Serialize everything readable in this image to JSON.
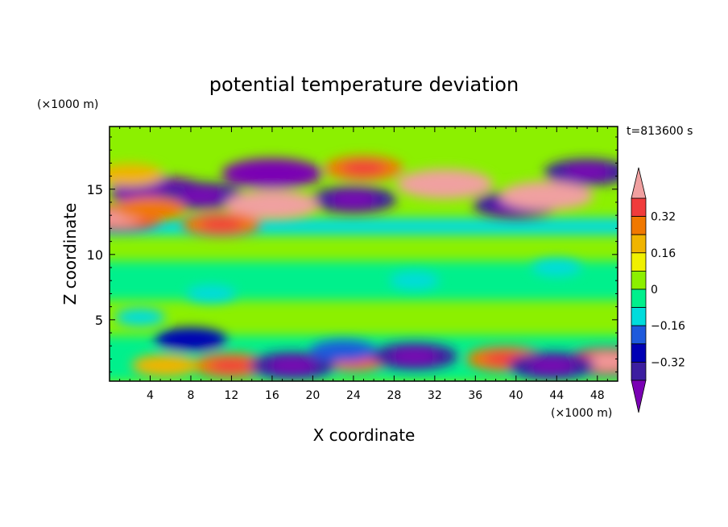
{
  "chart_data": {
    "type": "heatmap",
    "title": "potential temperature deviation",
    "xlabel": "X coordinate",
    "ylabel": "Z coordinate",
    "x_unit": "(×1000 m)",
    "y_unit": "(×1000 m)",
    "time_label": "t=813600 s",
    "xlim": [
      0,
      50
    ],
    "ylim": [
      0.3,
      19.8
    ],
    "x_ticks": [
      "4",
      "8",
      "12",
      "16",
      "20",
      "24",
      "28",
      "32",
      "36",
      "40",
      "44",
      "48"
    ],
    "y_ticks": [
      "5",
      "10",
      "15"
    ],
    "colorbar": {
      "levels": [
        -0.48,
        -0.4,
        -0.32,
        -0.24,
        -0.16,
        -0.08,
        0,
        0.08,
        0.16,
        0.24,
        0.32,
        0.4
      ],
      "colors": [
        "#7a00b4",
        "#3c1ea0",
        "#0000b4",
        "#1e5adc",
        "#00dcdc",
        "#00f08c",
        "#8cf000",
        "#f0f000",
        "#f0b400",
        "#f07800",
        "#f03c3c",
        "#f0a0a0"
      ],
      "tick_labels": [
        "0.32",
        "0.16",
        "0",
        "−0.16",
        "−0.32"
      ]
    },
    "features": [
      {
        "x": 5,
        "z": 14.8,
        "value": -0.45
      },
      {
        "x": 16,
        "z": 16.2,
        "value": -0.45
      },
      {
        "x": 9,
        "z": 14.5,
        "value": -0.35
      },
      {
        "x": 24,
        "z": 14.2,
        "value": -0.35
      },
      {
        "x": 40,
        "z": 13.8,
        "value": -0.35
      },
      {
        "x": 47,
        "z": 16.3,
        "value": -0.35
      },
      {
        "x": 33,
        "z": 15.4,
        "value": 0.42
      },
      {
        "x": 43,
        "z": 14.5,
        "value": 0.4
      },
      {
        "x": 16,
        "z": 13.8,
        "value": 0.4
      },
      {
        "x": 25,
        "z": 16.6,
        "value": 0.3
      },
      {
        "x": 2,
        "z": 16.1,
        "value": 0.22
      },
      {
        "x": 1,
        "z": 12.8,
        "value": 0.35
      },
      {
        "x": 11,
        "z": 12.3,
        "value": 0.3
      },
      {
        "x": 4,
        "z": 13.5,
        "value": 0.25
      },
      {
        "x": 24,
        "z": 2,
        "value": 0.3
      },
      {
        "x": 12,
        "z": 1.5,
        "value": 0.3
      },
      {
        "x": 39,
        "z": 2,
        "value": 0.3
      },
      {
        "x": 49,
        "z": 1.8,
        "value": 0.35
      },
      {
        "x": 5.5,
        "z": 1.5,
        "value": 0.22
      },
      {
        "x": 18,
        "z": 1.5,
        "value": -0.35
      },
      {
        "x": 30,
        "z": 2.2,
        "value": -0.35
      },
      {
        "x": 43.5,
        "z": 1.5,
        "value": -0.35
      },
      {
        "x": 23,
        "z": 2.6,
        "value": -0.22
      },
      {
        "x": 8,
        "z": 3.5,
        "value": -0.25
      },
      {
        "x": 30,
        "z": 8,
        "value": -0.1
      },
      {
        "x": 10,
        "z": 7,
        "value": -0.1
      },
      {
        "x": 44,
        "z": 9,
        "value": -0.1
      },
      {
        "x": 3,
        "z": 5.2,
        "value": -0.1
      }
    ]
  }
}
